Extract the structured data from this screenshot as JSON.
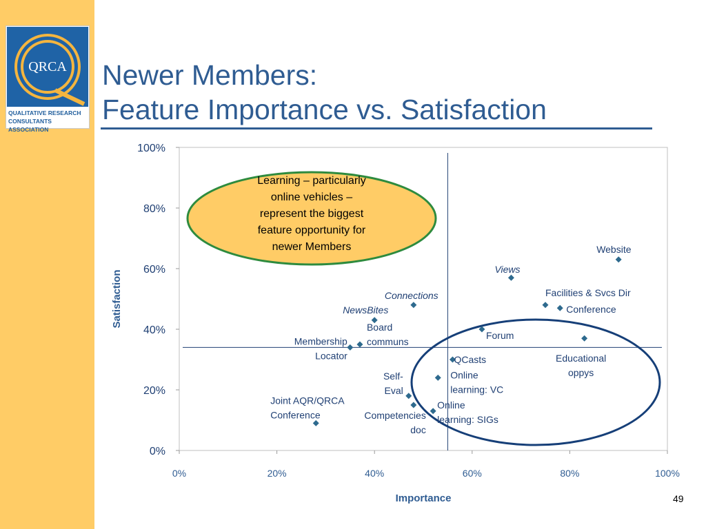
{
  "slide": {
    "title_line1": "Newer Members:",
    "title_line2": "Feature Importance vs. Satisfaction",
    "page_number": "49"
  },
  "logo": {
    "emblem_text": "QRCA",
    "tagline_line1": "QUALITATIVE RESEARCH",
    "tagline_line2": "CONSULTANTS ASSOCIATION"
  },
  "colors": {
    "sidebar": "#FFCC66",
    "title": "#2F5C92",
    "marker": "#2E6A8E",
    "label": "#1F3F73",
    "callout_fill": "#FFCC66",
    "callout_border": "#2E8B3E",
    "highlight_oval": "#163F78"
  },
  "chart_data": {
    "type": "scatter",
    "xlabel": "Importance",
    "ylabel": "Satisfaction",
    "xlim": [
      0,
      100
    ],
    "ylim": [
      0,
      100
    ],
    "x_ticks": [
      "0%",
      "20%",
      "40%",
      "60%",
      "80%",
      "100%"
    ],
    "y_ticks": [
      "0%",
      "20%",
      "40%",
      "60%",
      "80%",
      "100%"
    ],
    "grid": false,
    "reference_lines": {
      "x": 55,
      "y": 34
    },
    "points": [
      {
        "label": "Website",
        "x": 90,
        "y": 63,
        "italic": false
      },
      {
        "label": "Views",
        "x": 68,
        "y": 57,
        "italic": true
      },
      {
        "label": "Facilities & Svcs Dir",
        "x": 75,
        "y": 48,
        "italic": false
      },
      {
        "label": "Conference",
        "x": 78,
        "y": 47,
        "italic": false
      },
      {
        "label": "Connections",
        "x": 48,
        "y": 48,
        "italic": true
      },
      {
        "label": "NewsBites",
        "x": 40,
        "y": 43,
        "italic": true
      },
      {
        "label": "Board communs",
        "x": 37,
        "y": 35,
        "italic": false
      },
      {
        "label": "Membership Locator",
        "x": 35,
        "y": 34,
        "italic": false
      },
      {
        "label": "Forum",
        "x": 62,
        "y": 40,
        "italic": false
      },
      {
        "label": "Educational oppys",
        "x": 83,
        "y": 37,
        "italic": false
      },
      {
        "label": "QCasts",
        "x": 56,
        "y": 30,
        "italic": false
      },
      {
        "label": "Online learning: VC",
        "x": 53,
        "y": 24,
        "italic": false
      },
      {
        "label": "Self-Eval",
        "x": 47,
        "y": 18,
        "italic": false
      },
      {
        "label": "Competencies doc",
        "x": 48,
        "y": 15,
        "italic": false
      },
      {
        "label": "Online learning: SIGs",
        "x": 52,
        "y": 13,
        "italic": false
      },
      {
        "label": "Joint AQR/QRCA Conference",
        "x": 28,
        "y": 9,
        "italic": false
      }
    ],
    "annotations": [
      {
        "type": "callout",
        "text": "Learning – particularly online vehicles – represent the biggest feature opportunity for newer Members"
      }
    ]
  }
}
